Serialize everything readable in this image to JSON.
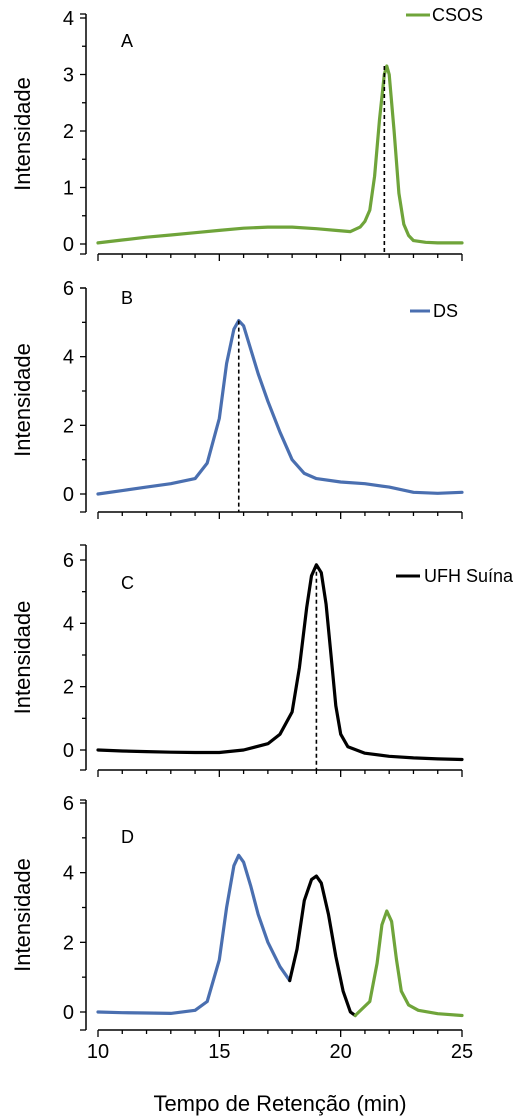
{
  "figure": {
    "xlabel": "Tempo de Retenção (min)",
    "xlim": [
      10,
      25
    ],
    "x_ticks": [
      10,
      15,
      20,
      25
    ]
  },
  "colors": {
    "CSOS": "#6fa43a",
    "DS": "#4a6fb0",
    "UFH": "#000000"
  },
  "chart_data": [
    {
      "type": "line",
      "panel": "A",
      "ylabel": "Intensidade",
      "xlim": [
        10,
        25
      ],
      "ylim": [
        0,
        4
      ],
      "y_ticks": [
        0,
        1,
        2,
        3,
        4
      ],
      "legend": "top-right",
      "series": [
        {
          "name": "CSOS",
          "color": "#6fa43a",
          "x": [
            10,
            11,
            12,
            13,
            14,
            15,
            16,
            17,
            18,
            19,
            19.8,
            20.4,
            20.8,
            21.0,
            21.2,
            21.4,
            21.6,
            21.8,
            21.9,
            22.0,
            22.2,
            22.4,
            22.6,
            22.8,
            23.0,
            23.5,
            24,
            25
          ],
          "y": [
            0.02,
            0.07,
            0.12,
            0.16,
            0.2,
            0.24,
            0.28,
            0.3,
            0.3,
            0.27,
            0.24,
            0.22,
            0.3,
            0.4,
            0.6,
            1.2,
            2.2,
            3.0,
            3.15,
            3.0,
            2.0,
            0.9,
            0.35,
            0.15,
            0.06,
            0.03,
            0.02,
            0.02
          ]
        }
      ],
      "peak_marker_x": 21.8
    },
    {
      "type": "line",
      "panel": "B",
      "ylabel": "Intensidade",
      "xlim": [
        10,
        25
      ],
      "ylim": [
        0,
        6
      ],
      "y_ticks": [
        0,
        2,
        4,
        6
      ],
      "legend": "top-right",
      "series": [
        {
          "name": "DS",
          "color": "#4a6fb0",
          "x": [
            10,
            11,
            12,
            13,
            14,
            14.5,
            15,
            15.3,
            15.6,
            15.8,
            16.0,
            16.3,
            16.6,
            17.0,
            17.5,
            18,
            18.5,
            19,
            20,
            21,
            22,
            23,
            24,
            25
          ],
          "y": [
            0.0,
            0.1,
            0.2,
            0.3,
            0.45,
            0.9,
            2.2,
            3.8,
            4.8,
            5.05,
            4.9,
            4.2,
            3.5,
            2.7,
            1.8,
            1.0,
            0.6,
            0.45,
            0.35,
            0.3,
            0.2,
            0.05,
            0.02,
            0.05
          ]
        }
      ],
      "peak_marker_x": 15.8
    },
    {
      "type": "line",
      "panel": "C",
      "ylabel": "Intensidade",
      "xlim": [
        10,
        25
      ],
      "ylim": [
        0,
        7
      ],
      "y_ticks": [
        0,
        2,
        4,
        6
      ],
      "legend": "top-right",
      "series": [
        {
          "name": "UFH Suína",
          "color": "#000000",
          "x": [
            10,
            11,
            12,
            13,
            14,
            15,
            16,
            17,
            17.5,
            18,
            18.3,
            18.6,
            18.8,
            19.0,
            19.2,
            19.4,
            19.6,
            19.8,
            20.0,
            20.3,
            21,
            22,
            23,
            24,
            25
          ],
          "y": [
            0.0,
            -0.03,
            -0.05,
            -0.07,
            -0.08,
            -0.08,
            0.0,
            0.2,
            0.5,
            1.2,
            2.6,
            4.5,
            5.5,
            5.85,
            5.6,
            4.6,
            3.0,
            1.4,
            0.5,
            0.1,
            -0.1,
            -0.2,
            -0.25,
            -0.28,
            -0.3
          ]
        }
      ],
      "peak_marker_x": 19.0
    },
    {
      "type": "line",
      "panel": "D",
      "ylabel": "Intensidade",
      "xlim": [
        10,
        25
      ],
      "ylim": [
        -0.4,
        6
      ],
      "y_ticks": [
        0,
        2,
        4,
        6
      ],
      "series": [
        {
          "name": "DS",
          "color": "#4a6fb0",
          "x": [
            10,
            11,
            12,
            13,
            14,
            14.5,
            15,
            15.3,
            15.6,
            15.8,
            16.0,
            16.3,
            16.6,
            17.0,
            17.5,
            17.9
          ],
          "y": [
            0.0,
            -0.02,
            -0.03,
            -0.04,
            0.05,
            0.3,
            1.5,
            3.0,
            4.2,
            4.5,
            4.3,
            3.6,
            2.8,
            2.0,
            1.3,
            0.9
          ]
        },
        {
          "name": "UFH Suína",
          "color": "#000000",
          "x": [
            17.9,
            18.2,
            18.5,
            18.8,
            19.0,
            19.2,
            19.5,
            19.8,
            20.1,
            20.4,
            20.6
          ],
          "y": [
            0.9,
            1.8,
            3.2,
            3.8,
            3.9,
            3.7,
            2.8,
            1.6,
            0.6,
            0.0,
            -0.1
          ]
        },
        {
          "name": "CSOS",
          "color": "#6fa43a",
          "x": [
            20.6,
            20.9,
            21.2,
            21.5,
            21.7,
            21.9,
            22.1,
            22.3,
            22.5,
            22.8,
            23.2,
            24,
            25
          ],
          "y": [
            -0.1,
            0.1,
            0.3,
            1.4,
            2.5,
            2.9,
            2.6,
            1.5,
            0.6,
            0.2,
            0.05,
            -0.05,
            -0.1
          ]
        }
      ]
    }
  ]
}
